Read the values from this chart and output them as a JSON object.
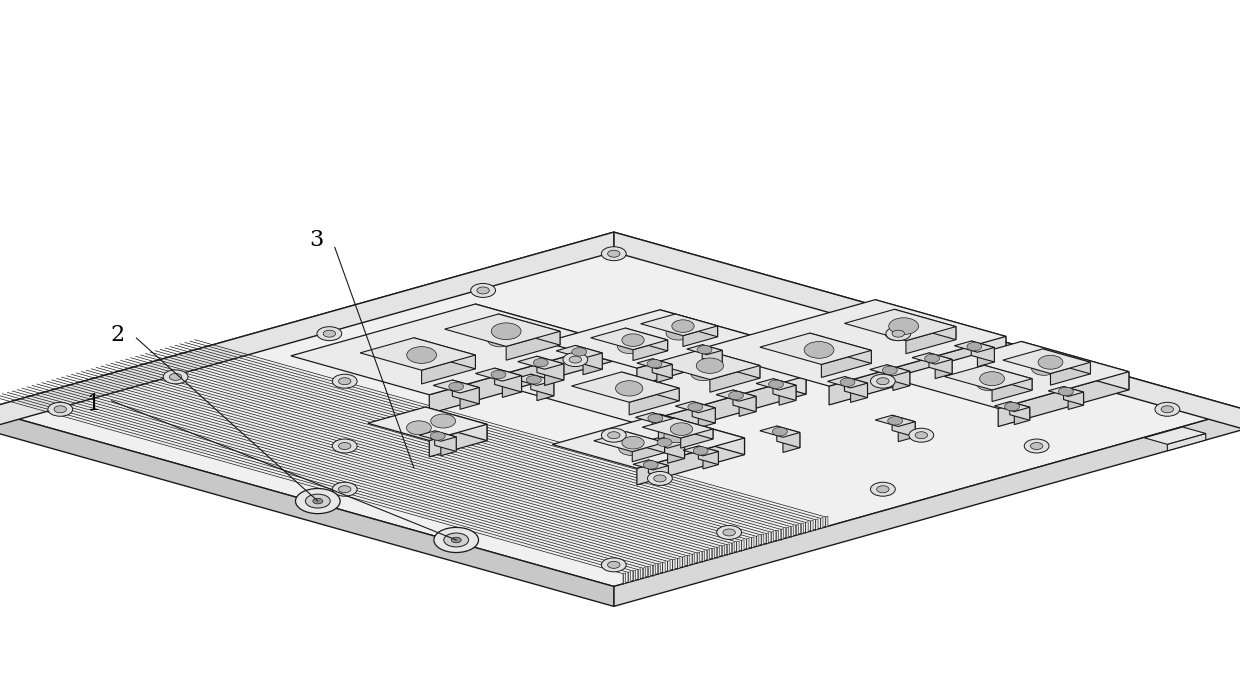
{
  "background_color": "#ffffff",
  "line_color": "#1a1a1a",
  "fill_top": "#f0f0f0",
  "fill_front": "#d8d8d8",
  "fill_right": "#e4e4e4",
  "fill_side_dark": "#c8c8c8",
  "figsize": [
    12.4,
    6.97
  ],
  "dpi": 100,
  "label_fontsize": 16,
  "labels": [
    "1",
    "2",
    "3"
  ],
  "iso_ox": 0.495,
  "iso_oy": 0.13,
  "iso_sx": 0.062,
  "iso_sy": 0.031,
  "iso_sz": 0.052
}
